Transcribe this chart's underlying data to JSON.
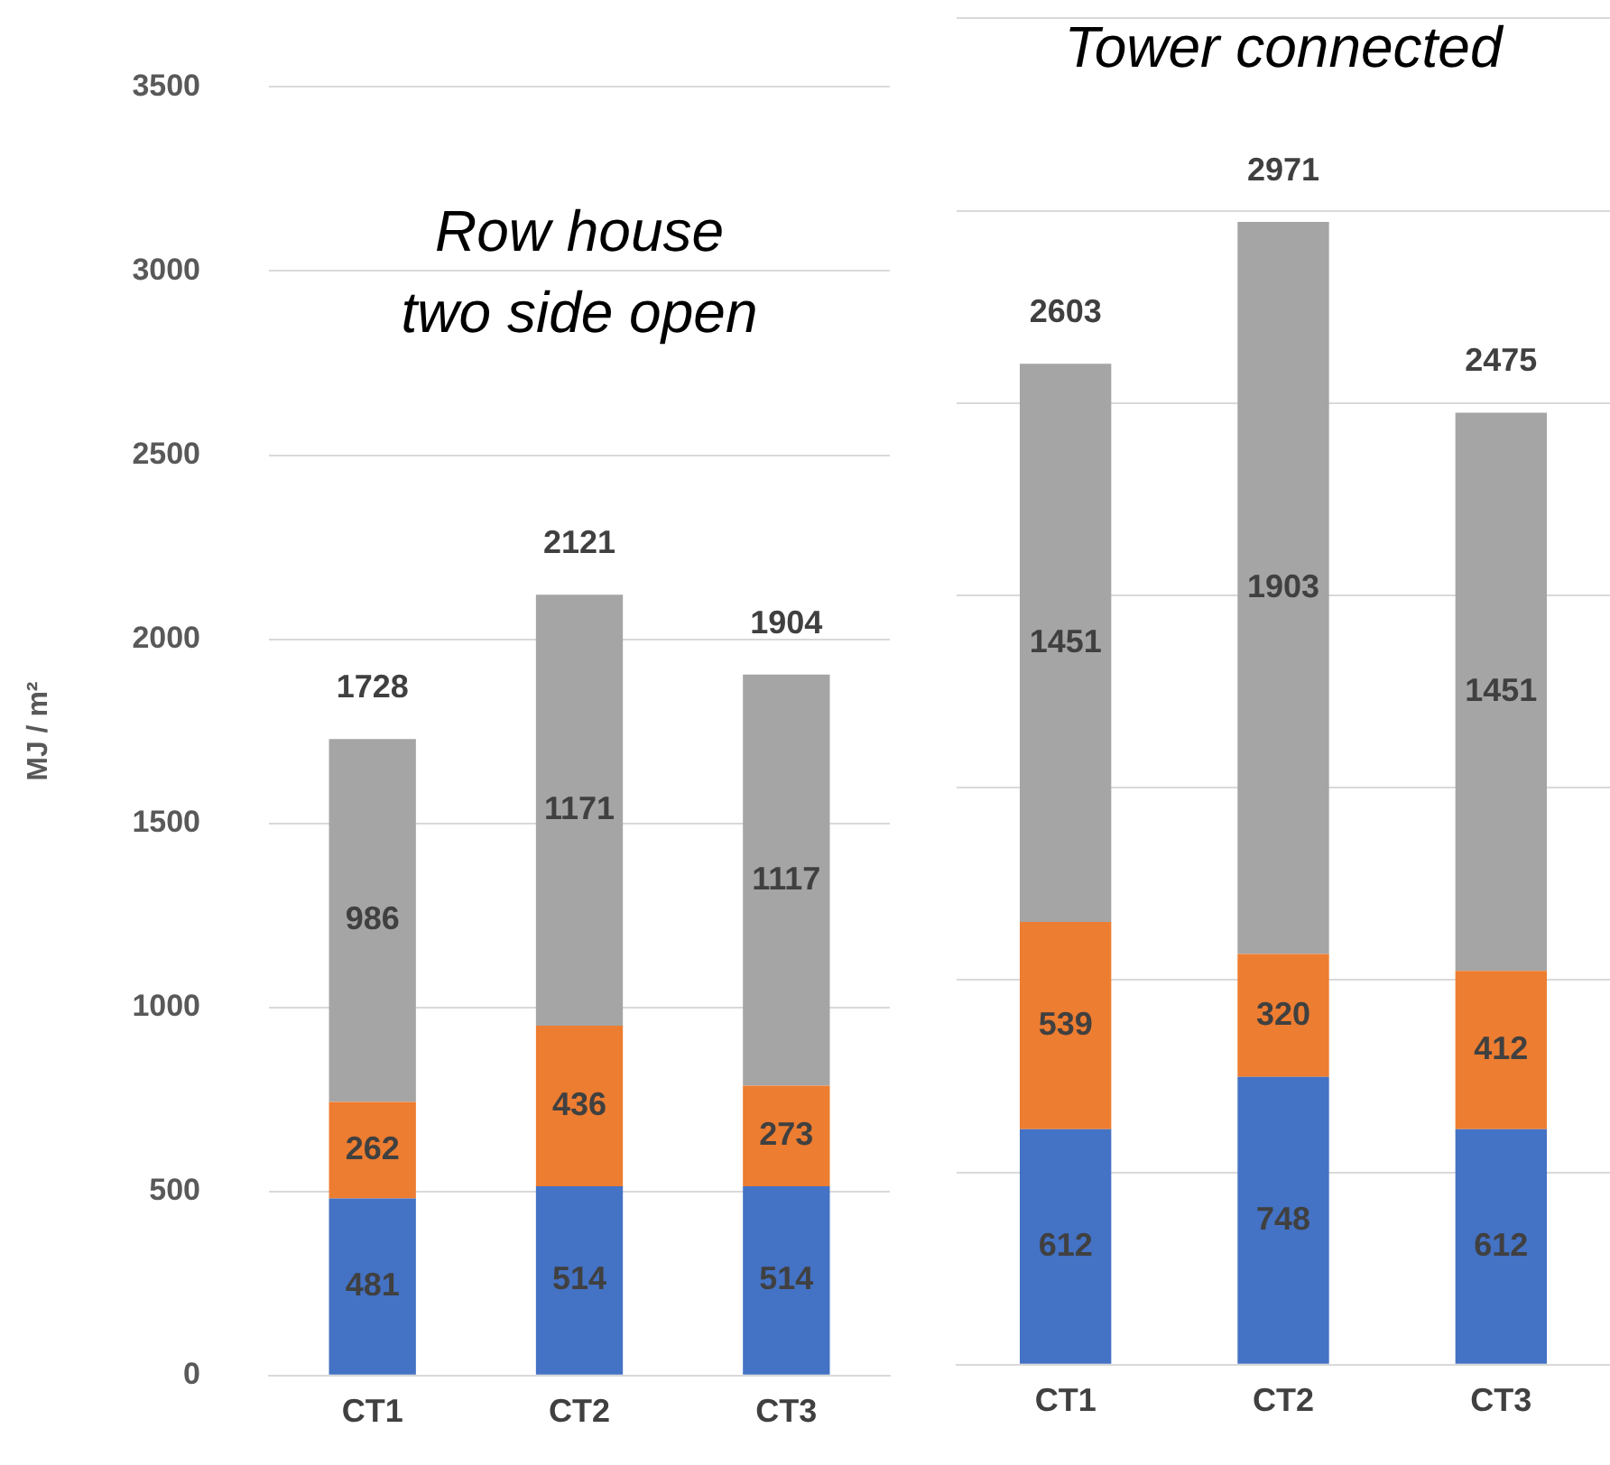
{
  "chart_data": [
    {
      "type": "bar",
      "title": "Row house\ntwo side open",
      "ylabel": "MJ / m²",
      "categories": [
        "CT1",
        "CT2",
        "CT3"
      ],
      "stacked": true,
      "series": [
        {
          "color": "#4472c4",
          "values": [
            481,
            514,
            514
          ]
        },
        {
          "color": "#ed7d31",
          "values": [
            262,
            436,
            273
          ]
        },
        {
          "color": "#a5a5a5",
          "values": [
            986,
            1171,
            1117
          ]
        }
      ],
      "totals": [
        "1728",
        "2121",
        "1904"
      ],
      "data_labels": true,
      "ylim": [
        0,
        3500
      ],
      "yticks": [
        0,
        500,
        1000,
        1500,
        2000,
        2500,
        3000,
        3500
      ],
      "grid": "y",
      "legend": false
    },
    {
      "type": "bar",
      "title": "Tower connected",
      "categories": [
        "CT1",
        "CT2",
        "CT3"
      ],
      "stacked": true,
      "series": [
        {
          "color": "#4472c4",
          "values": [
            612,
            748,
            612
          ]
        },
        {
          "color": "#ed7d31",
          "values": [
            539,
            320,
            412
          ]
        },
        {
          "color": "#a5a5a5",
          "values": [
            1451,
            1903,
            1451
          ]
        }
      ],
      "totals": [
        "2603",
        "2971",
        "2475"
      ],
      "data_labels": true,
      "ylim": [
        0,
        3500
      ],
      "yticks": [
        {
          "value": 0,
          "label": null
        },
        {
          "value": 500,
          "label": null
        },
        {
          "value": 1000,
          "label": null
        },
        {
          "value": 1500,
          "label": null
        },
        {
          "value": 2000,
          "label": null
        },
        {
          "value": 2500,
          "label": null
        },
        {
          "value": 3000,
          "label": null
        },
        {
          "value": 3500,
          "label": null
        }
      ],
      "grid": "y",
      "legend": false
    }
  ]
}
